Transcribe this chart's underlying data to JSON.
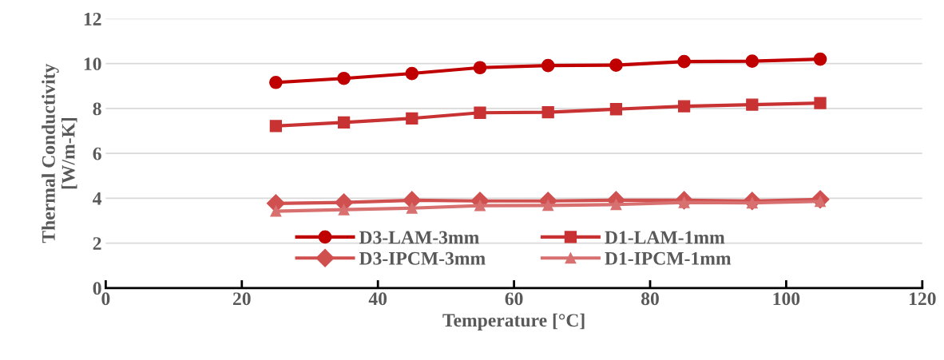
{
  "chart_data": {
    "type": "line",
    "xlabel": "Temperature [°C]",
    "ylabel": "Thermal Conductivity\n[W/m-K]",
    "x": [
      25,
      35,
      45,
      55,
      65,
      75,
      85,
      95,
      105
    ],
    "series": [
      {
        "name": "D3-LAM-3mm",
        "color": "#c00000",
        "marker": "circle",
        "values": [
          9.16,
          9.34,
          9.56,
          9.82,
          9.91,
          9.93,
          10.09,
          10.11,
          10.2
        ]
      },
      {
        "name": "D1-LAM-1mm",
        "color": "#c83232",
        "marker": "square",
        "values": [
          7.22,
          7.38,
          7.56,
          7.81,
          7.83,
          7.97,
          8.1,
          8.17,
          8.24
        ]
      },
      {
        "name": "D3-IPCM-3mm",
        "color": "#d05050",
        "marker": "diamond",
        "values": [
          3.77,
          3.81,
          3.91,
          3.88,
          3.88,
          3.91,
          3.91,
          3.88,
          3.95
        ]
      },
      {
        "name": "D1-IPCM-1mm",
        "color": "#d87070",
        "marker": "triangle",
        "values": [
          3.42,
          3.49,
          3.56,
          3.67,
          3.68,
          3.72,
          3.81,
          3.79,
          3.86
        ]
      }
    ],
    "xlim": [
      0,
      120
    ],
    "xticks": [
      0,
      20,
      40,
      60,
      80,
      100,
      120
    ],
    "ylim": [
      0,
      12
    ],
    "yticks": [
      0,
      2,
      4,
      6,
      8,
      10,
      12
    ],
    "grid": "y",
    "legend": "bottom",
    "line_style": "solid"
  }
}
